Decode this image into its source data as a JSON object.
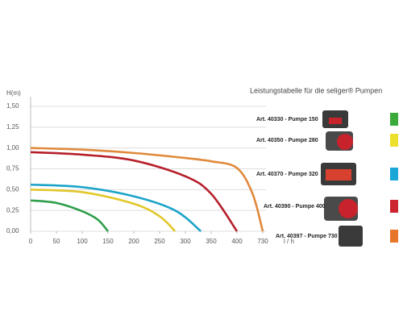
{
  "chart_data": {
    "type": "line",
    "title": "Leistungstabelle für die seliger® Pumpen",
    "y_label": "H(m)",
    "x_label": "l / h",
    "ylim": [
      0,
      1.5
    ],
    "yticks": [
      {
        "value": 0,
        "label": "0,00"
      },
      {
        "value": 0.25,
        "label": "0,25"
      },
      {
        "value": 0.5,
        "label": "0,50"
      },
      {
        "value": 0.75,
        "label": "0,75"
      },
      {
        "value": 1,
        "label": "1,00"
      },
      {
        "value": 1.25,
        "label": "1,25"
      },
      {
        "value": 1.5,
        "label": "1,50"
      }
    ],
    "xlim": [
      0,
      730
    ],
    "xticks": [
      0,
      50,
      100,
      150,
      200,
      250,
      300,
      350,
      400,
      730
    ],
    "grid": true,
    "series": [
      {
        "name": "Art. 40330 - Pumpe 150",
        "color": "#2f9e4a",
        "swatch": "#3aaa3a",
        "x": [
          0,
          50,
          100,
          130,
          150
        ],
        "values": [
          0.37,
          0.34,
          0.24,
          0.14,
          0
        ]
      },
      {
        "name": "Art. 40350 - Pumpe 280",
        "color": "#e2c72a",
        "swatch": "#ece02c",
        "x": [
          0,
          100,
          200,
          250,
          280
        ],
        "values": [
          0.5,
          0.47,
          0.33,
          0.18,
          0
        ]
      },
      {
        "name": "Art. 40370 - Pumpe 320",
        "color": "#1ba3c9",
        "swatch": "#1aa6d6",
        "x": [
          0,
          100,
          200,
          280,
          330
        ],
        "values": [
          0.56,
          0.53,
          0.42,
          0.25,
          0
        ]
      },
      {
        "name": "Art. 40390 - Pumpe 400",
        "color": "#b51f2a",
        "swatch": "#cc2530",
        "x": [
          0,
          100,
          200,
          300,
          350,
          400
        ],
        "values": [
          0.95,
          0.92,
          0.85,
          0.66,
          0.45,
          0
        ]
      },
      {
        "name": "Art. 40397 - Pumpe 730",
        "color": "#e0893a",
        "swatch": "#e8762a",
        "x": [
          0,
          100,
          200,
          300,
          350,
          400,
          600,
          730
        ],
        "values": [
          1.0,
          0.98,
          0.94,
          0.88,
          0.84,
          0.76,
          0.45,
          0
        ]
      }
    ]
  }
}
